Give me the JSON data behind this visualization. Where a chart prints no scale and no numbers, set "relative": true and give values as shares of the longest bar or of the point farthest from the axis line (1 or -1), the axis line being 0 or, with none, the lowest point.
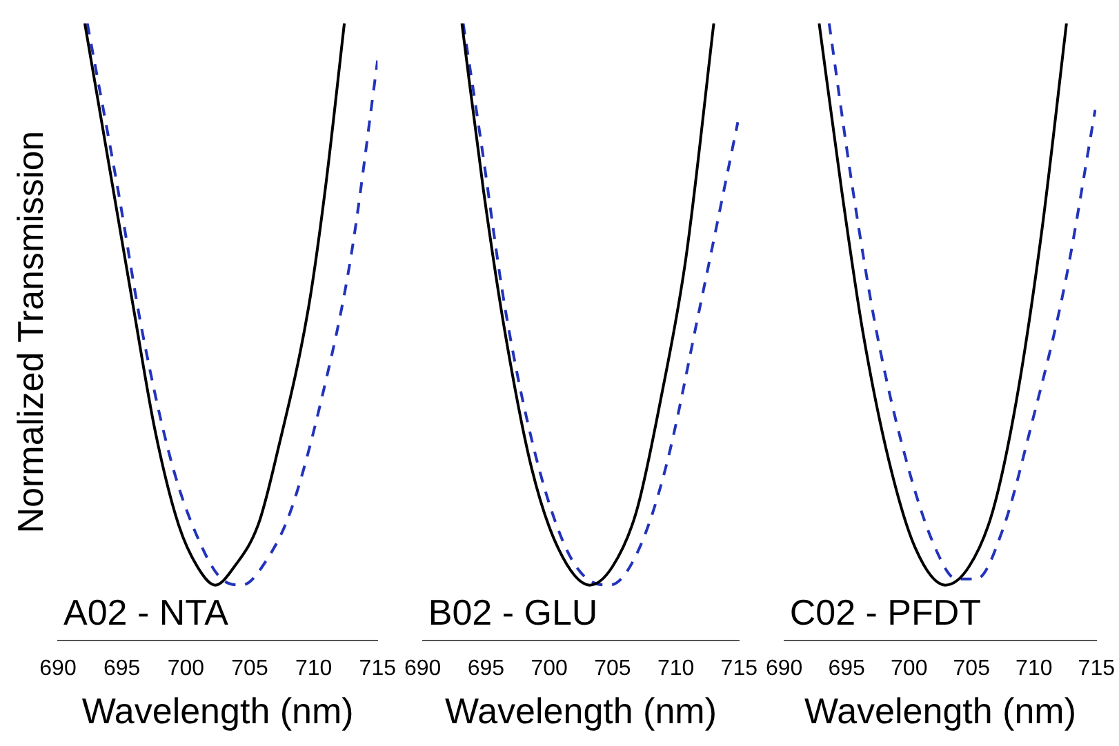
{
  "chart_data": [
    {
      "type": "line",
      "relative": true,
      "xlabel": "Wavelength (nm)",
      "ylabel": "Normalized Transmission",
      "annotations": [
        "A02 - NTA"
      ],
      "xlim": [
        690,
        715
      ],
      "xticks": [
        690,
        695,
        700,
        705,
        710,
        715
      ],
      "legend": false,
      "grid": false,
      "marker": "none",
      "series": [
        {
          "color": "#000000",
          "line_style": "solid",
          "x": [
            692.1,
            694.0,
            695.9,
            697.6,
            699.4,
            700.9,
            702.3,
            703.8,
            705.7,
            707.1,
            709.6,
            710.9,
            712.4
          ],
          "values": [
            1.0,
            0.77,
            0.54,
            0.34,
            0.19,
            0.12,
            0.09,
            0.12,
            0.19,
            0.3,
            0.54,
            0.73,
            1.0
          ]
        },
        {
          "color": "#2233bb",
          "line_style": "dashed",
          "x": [
            692.3,
            694.7,
            696.6,
            699.0,
            701.3,
            702.8,
            704.4,
            706.3,
            708.2,
            710.6,
            712.9,
            715.0
          ],
          "values": [
            1.0,
            0.73,
            0.5,
            0.28,
            0.15,
            0.1,
            0.09,
            0.13,
            0.21,
            0.39,
            0.62,
            0.94
          ]
        }
      ]
    },
    {
      "type": "line",
      "relative": true,
      "xlabel": "Wavelength (nm)",
      "annotations": [
        "B02 - GLU"
      ],
      "xlim": [
        690,
        715
      ],
      "xticks": [
        690,
        695,
        700,
        705,
        710,
        715
      ],
      "legend": false,
      "grid": false,
      "marker": "none",
      "series": [
        {
          "color": "#000000",
          "line_style": "solid",
          "x": [
            693.1,
            694.8,
            696.5,
            698.6,
            700.7,
            703.2,
            705.0,
            706.9,
            708.8,
            710.8,
            713.0
          ],
          "values": [
            1.0,
            0.73,
            0.5,
            0.28,
            0.15,
            0.09,
            0.12,
            0.21,
            0.39,
            0.62,
            1.0
          ]
        },
        {
          "color": "#2233bb",
          "line_style": "dashed",
          "x": [
            693.2,
            694.6,
            696.5,
            698.8,
            701.1,
            703.0,
            704.8,
            706.9,
            709.2,
            711.9,
            714.9
          ],
          "values": [
            1.0,
            0.81,
            0.54,
            0.31,
            0.16,
            0.1,
            0.09,
            0.14,
            0.28,
            0.54,
            0.84
          ]
        }
      ]
    },
    {
      "type": "line",
      "relative": true,
      "xlabel": "Wavelength (nm)",
      "annotations": [
        "C02 - PFDT"
      ],
      "xlim": [
        690,
        715
      ],
      "xticks": [
        690,
        695,
        700,
        705,
        710,
        715
      ],
      "legend": false,
      "grid": false,
      "marker": "none",
      "series": [
        {
          "color": "#000000",
          "line_style": "solid",
          "x": [
            692.8,
            694.6,
            696.3,
            698.4,
            700.5,
            702.9,
            704.8,
            706.7,
            708.6,
            710.6,
            712.6
          ],
          "values": [
            1.0,
            0.73,
            0.5,
            0.29,
            0.15,
            0.09,
            0.12,
            0.21,
            0.39,
            0.66,
            1.0
          ]
        },
        {
          "color": "#2233bb",
          "line_style": "dashed",
          "x": [
            693.6,
            695.5,
            697.4,
            699.8,
            702.1,
            703.8,
            705.4,
            707.5,
            709.8,
            712.5,
            714.9
          ],
          "values": [
            1.0,
            0.73,
            0.5,
            0.29,
            0.15,
            0.1,
            0.1,
            0.18,
            0.35,
            0.58,
            0.86
          ]
        }
      ]
    }
  ]
}
